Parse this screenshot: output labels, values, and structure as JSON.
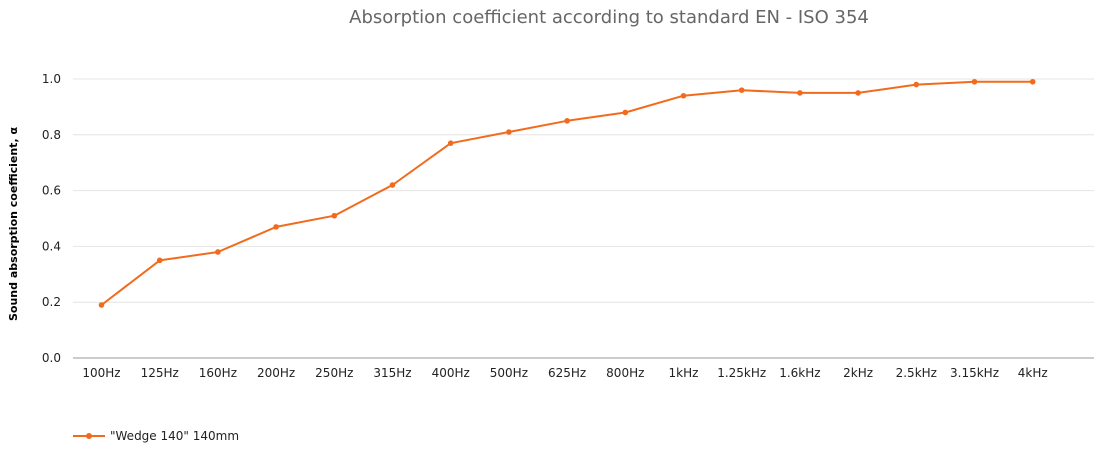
{
  "chart_data": {
    "type": "line",
    "title": "Absorption coefficient according to standard EN - ISO 354",
    "xlabel": "",
    "ylabel": "Sound absorption coefficient, α",
    "categories": [
      "100Hz",
      "125Hz",
      "160Hz",
      "200Hz",
      "250Hz",
      "315Hz",
      "400Hz",
      "500Hz",
      "625Hz",
      "800Hz",
      "1kHz",
      "1.25kHz",
      "1.6kHz",
      "2kHz",
      "2.5kHz",
      "3.15kHz",
      "4kHz"
    ],
    "y_ticks": [
      "0.0",
      "0.2",
      "0.4",
      "0.6",
      "0.8",
      "1.0"
    ],
    "ylim": [
      0,
      1.0
    ],
    "grid": true,
    "legend_position": "bottom-left",
    "series": [
      {
        "name": "\"Wedge 140\" 140mm",
        "color": "#f26b1d",
        "values": [
          0.19,
          0.35,
          0.38,
          0.47,
          0.51,
          0.62,
          0.77,
          0.81,
          0.85,
          0.88,
          0.94,
          0.96,
          0.95,
          0.95,
          0.98,
          0.99,
          0.99
        ]
      }
    ]
  }
}
